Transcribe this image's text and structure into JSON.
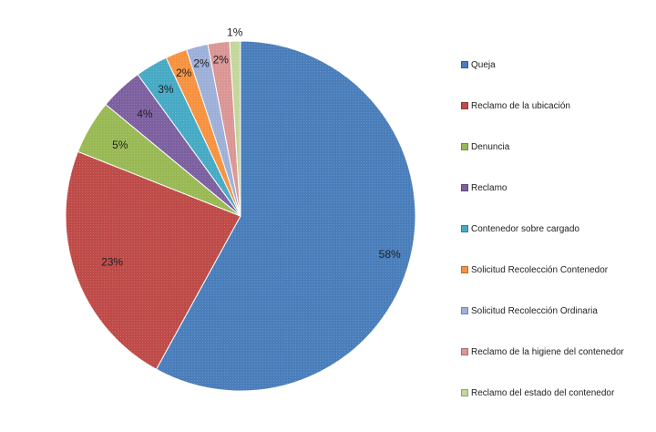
{
  "chart_data": {
    "type": "pie",
    "title": "",
    "start_angle_deg": 0,
    "direction": "clockwise",
    "slices": [
      {
        "label": "Queja",
        "value": 58,
        "display": "58%",
        "color": "#4A7EBB"
      },
      {
        "label": "Reclamo de la ubicación",
        "value": 23,
        "display": "23%",
        "color": "#BE4B48"
      },
      {
        "label": "Denuncia",
        "value": 5,
        "display": "5%",
        "color": "#98B954"
      },
      {
        "label": "Reclamo",
        "value": 4,
        "display": "4%",
        "color": "#7D60A0"
      },
      {
        "label": "Contenedor sobre cargado",
        "value": 3,
        "display": "3%",
        "color": "#46AAC5"
      },
      {
        "label": "Solicitud Recolección Contenedor",
        "value": 2,
        "display": "2%",
        "color": "#F69240"
      },
      {
        "label": "Solicitud Recolección Ordinaria",
        "value": 2,
        "display": "2%",
        "color": "#9DB0D8"
      },
      {
        "label": "Reclamo de la higiene del contenedor",
        "value": 2,
        "display": "2%",
        "color": "#DA9695"
      },
      {
        "label": "Reclamo del estado del contenedor",
        "value": 1,
        "display": "1%",
        "color": "#C3D69B"
      }
    ],
    "legend_position": "right"
  }
}
